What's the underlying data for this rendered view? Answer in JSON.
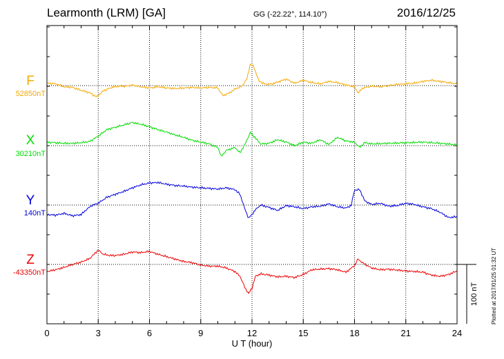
{
  "header": {
    "station": "Learmonth (LRM)  [GA]",
    "coords": "GG (-22.22°, 114.10°)",
    "date": "2016/12/25"
  },
  "plotted": "Plotted at 2017/01/25 01:32 UT",
  "scale_label": "100 nT",
  "chart_data": {
    "type": "line",
    "title": "Learmonth (LRM)  [GA]",
    "xlabel": "U T (hour)",
    "ylabel": "",
    "xlim": [
      0,
      24
    ],
    "xticks": [
      "0",
      "3",
      "6",
      "9",
      "12",
      "15",
      "18",
      "21",
      "24"
    ],
    "grid": true,
    "scale_bar_nT": 100,
    "series": [
      {
        "name": "F",
        "baseline_label": "52850nT",
        "color": "#f5a800",
        "baseline_nT": 52850,
        "x": [
          0,
          0.5,
          1,
          1.5,
          2,
          2.5,
          2.9,
          3.3,
          3.8,
          4.2,
          4.6,
          5,
          5.5,
          6,
          6.5,
          7,
          7.5,
          8,
          8.5,
          9,
          9.5,
          10,
          10.3,
          10.7,
          11,
          11.4,
          11.7,
          11.9,
          12.1,
          12.4,
          12.8,
          13.2,
          13.6,
          14,
          14.5,
          15,
          15.5,
          16,
          16.5,
          17,
          17.5,
          18,
          18.2,
          18.5,
          19,
          19.5,
          20,
          20.5,
          21,
          21.5,
          22,
          22.5,
          23,
          23.5,
          24
        ],
        "y": [
          4,
          3,
          -2,
          -3,
          -8,
          -12,
          -19,
          -9,
          -3,
          -1,
          -1,
          1,
          -2,
          -4,
          -2,
          -4,
          -5,
          -4,
          -3,
          -4,
          -3,
          -4,
          -17,
          -12,
          -6,
          -1,
          11,
          36,
          32,
          8,
          2,
          3,
          7,
          11,
          4,
          9,
          5,
          3,
          7,
          5,
          1,
          -2,
          -12,
          -4,
          -1,
          -2,
          0,
          2,
          3,
          4,
          7,
          9,
          7,
          5,
          3
        ]
      },
      {
        "name": "X",
        "baseline_label": "30210nT",
        "color": "#00dd00",
        "baseline_nT": 30210,
        "x": [
          0,
          0.5,
          1,
          1.5,
          2,
          2.5,
          3,
          3.5,
          4,
          4.5,
          5,
          5.5,
          6,
          6.5,
          7,
          7.5,
          8,
          8.5,
          9,
          9.5,
          10,
          10.2,
          10.5,
          11,
          11.3,
          11.6,
          11.9,
          12.2,
          12.5,
          13,
          13.5,
          14,
          14.5,
          15,
          15.5,
          16,
          16.5,
          17,
          17.5,
          18,
          18.3,
          18.6,
          19,
          20,
          21,
          22,
          23,
          23.5,
          24
        ],
        "y": [
          6,
          5,
          4,
          4,
          5,
          7,
          16,
          27,
          31,
          35,
          39,
          36,
          32,
          27,
          23,
          18,
          14,
          9,
          6,
          3,
          -3,
          -18,
          -8,
          -3,
          -12,
          3,
          22,
          13,
          3,
          4,
          10,
          6,
          0,
          6,
          4,
          10,
          2,
          14,
          8,
          6,
          -3,
          5,
          3,
          4,
          5,
          6,
          4,
          3,
          1
        ]
      },
      {
        "name": "Y",
        "baseline_label": "140nT",
        "color": "#0000dd",
        "baseline_nT": 140,
        "x": [
          0,
          0.5,
          1,
          1.5,
          2,
          2.3,
          2.6,
          3,
          3.5,
          4,
          4.5,
          5,
          5.5,
          6,
          6.5,
          7,
          7.5,
          8,
          8.5,
          9,
          9.5,
          10,
          10.5,
          11,
          11.3,
          11.6,
          11.8,
          12,
          12.2,
          12.5,
          13,
          13.5,
          14,
          14.5,
          15,
          15.5,
          16,
          16.5,
          17,
          17.5,
          17.8,
          18,
          18.3,
          18.6,
          19,
          19.5,
          20,
          20.5,
          21,
          21.5,
          22,
          22.5,
          23,
          23.5,
          24
        ],
        "y": [
          -16,
          -17,
          -14,
          -18,
          -16,
          -8,
          -1,
          3,
          13,
          18,
          23,
          29,
          34,
          37,
          38,
          35,
          33,
          32,
          30,
          29,
          28,
          27,
          29,
          26,
          18,
          -8,
          -22,
          -16,
          -8,
          0,
          -4,
          -9,
          -1,
          -3,
          -6,
          -3,
          -2,
          2,
          -3,
          -5,
          -1,
          25,
          26,
          7,
          1,
          3,
          -2,
          -1,
          3,
          1,
          -3,
          -6,
          -12,
          -21,
          -20
        ]
      },
      {
        "name": "Z",
        "baseline_label": "-43350nT",
        "color": "#ee0000",
        "baseline_nT": -43350,
        "x": [
          0,
          0.5,
          1,
          1.5,
          2,
          2.5,
          3,
          3.3,
          3.7,
          4,
          4.5,
          5,
          5.5,
          6,
          6.5,
          7,
          7.5,
          8,
          8.5,
          9,
          9.5,
          10,
          10.5,
          11,
          11.3,
          11.6,
          11.8,
          12,
          12.2,
          12.5,
          13,
          13.5,
          14,
          14.5,
          15,
          15.5,
          16,
          16.5,
          17,
          17.5,
          18,
          18.2,
          18.5,
          19,
          19.5,
          20,
          21,
          22,
          22.5,
          23,
          23.5,
          24
        ],
        "y": [
          -12,
          -9,
          -5,
          0,
          4,
          10,
          24,
          17,
          15,
          15,
          17,
          21,
          20,
          22,
          17,
          13,
          9,
          5,
          3,
          -1,
          -3,
          -3,
          -6,
          -12,
          -20,
          -40,
          -49,
          -40,
          -20,
          -16,
          -18,
          -21,
          -20,
          -22,
          -17,
          -9,
          -8,
          -7,
          -9,
          -13,
          -2,
          9,
          2,
          -6,
          -9,
          -8,
          -11,
          -13,
          -18,
          -20,
          -17,
          -11
        ]
      }
    ]
  }
}
